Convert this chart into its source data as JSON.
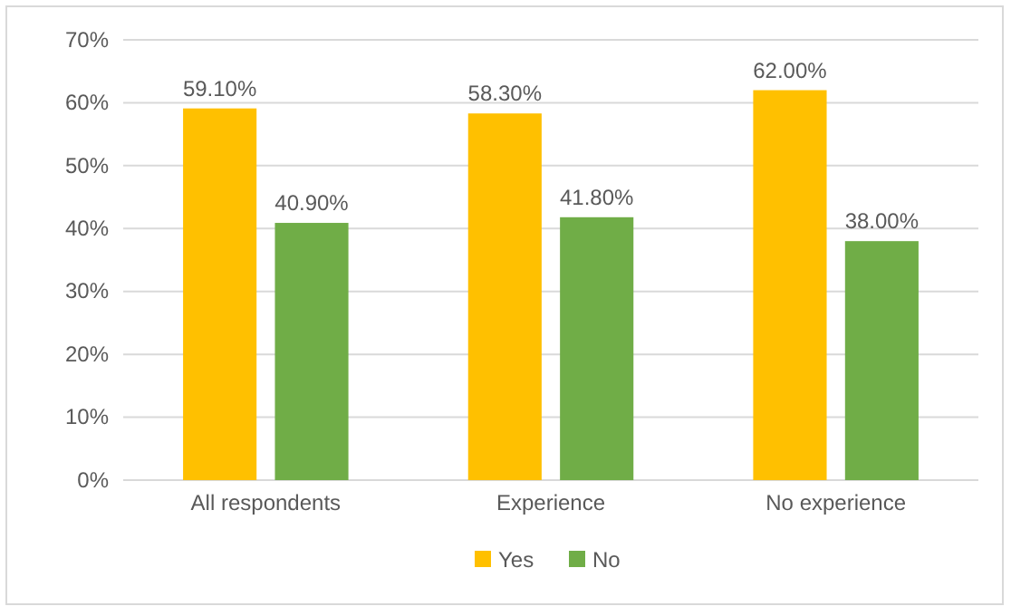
{
  "chart_data": {
    "type": "bar",
    "categories": [
      "All respondents",
      "Experience",
      "No experience"
    ],
    "series": [
      {
        "name": "Yes",
        "color": "#ffc000",
        "values": [
          59.1,
          58.3,
          62.0
        ],
        "value_labels": [
          "59.10%",
          "58.30%",
          "62.00%"
        ]
      },
      {
        "name": "No",
        "color": "#70ad47",
        "values": [
          40.9,
          41.8,
          38.0
        ],
        "value_labels": [
          "40.90%",
          "41.80%",
          "38.00%"
        ]
      }
    ],
    "ylim": [
      0,
      70
    ],
    "yticks": [
      {
        "value": 0,
        "label": "0%"
      },
      {
        "value": 10,
        "label": "10%"
      },
      {
        "value": 20,
        "label": "20%"
      },
      {
        "value": 30,
        "label": "30%"
      },
      {
        "value": 40,
        "label": "40%"
      },
      {
        "value": 50,
        "label": "50%"
      },
      {
        "value": 60,
        "label": "60%"
      },
      {
        "value": 70,
        "label": "70%"
      }
    ],
    "grid": "y",
    "legend": "bottom"
  }
}
